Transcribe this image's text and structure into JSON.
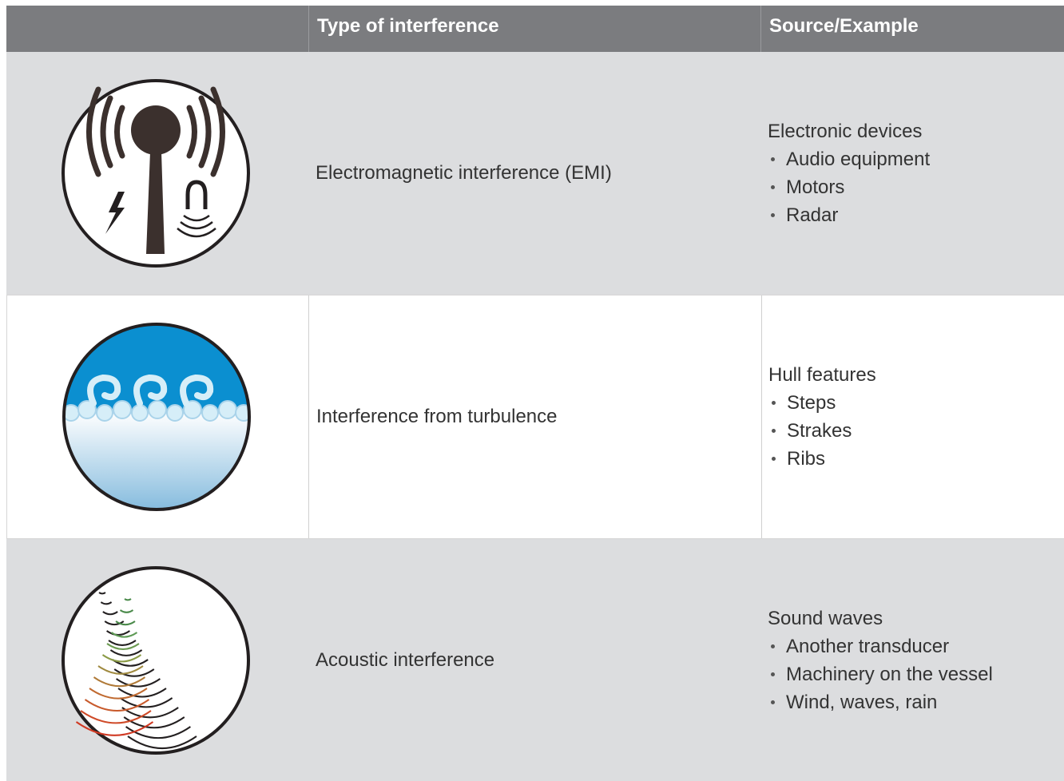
{
  "table": {
    "header": [
      "Type of interference",
      "Source/Example"
    ],
    "rows": [
      {
        "type": "Electromagnetic interference (EMI)",
        "source": "Electronic devices",
        "examples": [
          "Audio equipment",
          "Motors",
          "Radar"
        ]
      },
      {
        "type": "Interference from turbulence",
        "source": "Hull features",
        "examples": [
          "Steps",
          "Strakes",
          "Ribs"
        ]
      },
      {
        "type": "Acoustic interference",
        "source": "Sound waves",
        "examples": [
          "Another transducer",
          "Machinery on the vessel",
          "Wind, waves, rain"
        ]
      }
    ]
  }
}
